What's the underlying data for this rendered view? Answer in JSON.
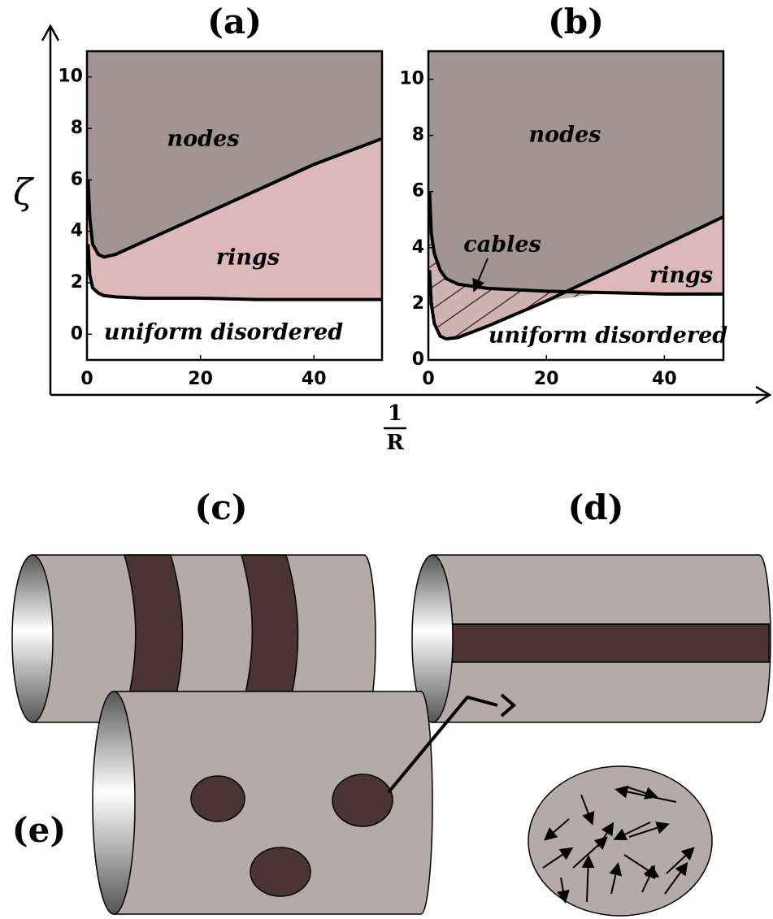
{
  "axes": {
    "y_label": "ζ",
    "x_label_numerator": "1",
    "x_label_denominator": "R"
  },
  "chart_data": [
    {
      "type": "line",
      "title": "(a)",
      "xlim": [
        0,
        52
      ],
      "ylim": [
        -1,
        11
      ],
      "xticks": [
        0,
        20,
        40
      ],
      "yticks": [
        0,
        2,
        4,
        6,
        8,
        10
      ],
      "x": [
        0.2,
        0.5,
        1,
        2,
        3,
        5,
        10,
        20,
        30,
        40,
        52
      ],
      "series": [
        {
          "color": "#000000",
          "values": [
            6,
            4.5,
            3.5,
            3.1,
            3.0,
            3.1,
            3.6,
            4.6,
            5.6,
            6.6,
            7.6
          ]
        },
        {
          "color": "#000000",
          "values": [
            3.5,
            2.3,
            1.8,
            1.6,
            1.5,
            1.45,
            1.4,
            1.4,
            1.35,
            1.35,
            1.35
          ]
        }
      ],
      "region_colors": [
        "#a39494",
        "#dcb8b8",
        "#ffffff"
      ],
      "annotations": [
        "nodes",
        "rings",
        "uniform disordered"
      ]
    },
    {
      "type": "line",
      "title": "(b)",
      "xlim": [
        0,
        50
      ],
      "ylim": [
        0,
        11
      ],
      "xticks": [
        0,
        20,
        40
      ],
      "yticks": [
        0,
        2,
        4,
        6,
        8,
        10
      ],
      "x": [
        0.2,
        0.5,
        1,
        2,
        3,
        5,
        10,
        20,
        30,
        40,
        50
      ],
      "series": [
        {
          "color": "#000000",
          "values": [
            6,
            4.5,
            3.8,
            3.2,
            2.9,
            2.7,
            2.55,
            2.45,
            2.4,
            2.35,
            2.35
          ]
        },
        {
          "color": "#000000",
          "values": [
            3.2,
            2,
            1.3,
            0.85,
            0.75,
            0.8,
            1.2,
            2.1,
            3.1,
            4.1,
            5.1
          ]
        }
      ],
      "region_colors": [
        "#a39494",
        "#dcb8b8",
        "#ffffff"
      ],
      "annotations": [
        "nodes",
        "cables",
        "rings",
        "uniform disordered"
      ]
    }
  ],
  "panels": {
    "c": "(c)",
    "d": "(d)",
    "e": "(e)"
  }
}
